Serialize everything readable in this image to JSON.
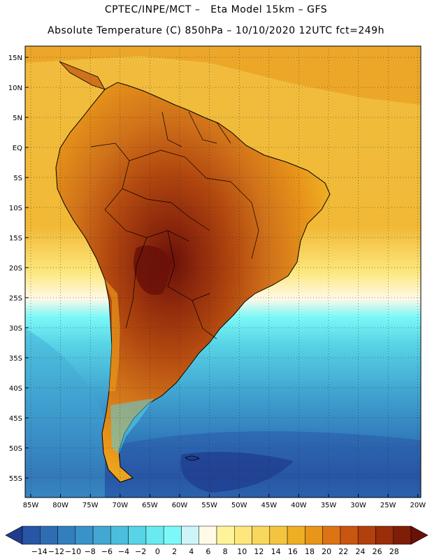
{
  "header": {
    "title_line1": "CPTEC/INPE/MCT –   Eta Model 15km – GFS",
    "title_line2": "Absolute Temperature (C) 850hPa – 10/10/2020 12UTC fct=249h"
  },
  "map": {
    "lat_labels": [
      "15N",
      "10N",
      "5N",
      "EQ",
      "5S",
      "10S",
      "15S",
      "20S",
      "25S",
      "30S",
      "35S",
      "40S",
      "45S",
      "50S",
      "55S"
    ],
    "lon_labels": [
      "85W",
      "80W",
      "75W",
      "70W",
      "65W",
      "60W",
      "55W",
      "50W",
      "45W",
      "40W",
      "35W",
      "30W",
      "25W",
      "20W"
    ]
  },
  "colorbar": {
    "labels": [
      "-14",
      "-12",
      "-10",
      "-8",
      "-6",
      "-4",
      "-2",
      "0",
      "2",
      "4",
      "6",
      "8",
      "10",
      "12",
      "14",
      "16",
      "18",
      "20",
      "22",
      "24",
      "26",
      "28"
    ],
    "colors": [
      "#1f3b8c",
      "#2856a5",
      "#2e6db4",
      "#337fbe",
      "#3a93c8",
      "#42a7d2",
      "#4cbedd",
      "#58d4e6",
      "#68eaf0",
      "#7cf8f8",
      "#cdf5f9",
      "#fff9e8",
      "#fff39a",
      "#fde77c",
      "#f9d65c",
      "#f4c440",
      "#efaf24",
      "#e8951a",
      "#dc7414",
      "#c85610",
      "#b2400c",
      "#9a2d0a",
      "#7f1d08",
      "#6a1008"
    ]
  }
}
